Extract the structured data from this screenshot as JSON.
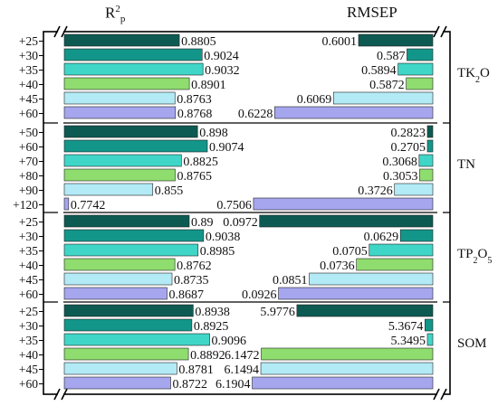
{
  "chart_data": {
    "type": "bar",
    "title": "",
    "xlabel": "",
    "ylabel": "",
    "headers": {
      "left_base": "R",
      "left_sup": "2",
      "left_sub": "p",
      "right": "RMSEP"
    },
    "colors": [
      "#0d5a52",
      "#13968a",
      "#3fd6c8",
      "#8fdc6f",
      "#b2eaf6",
      "#a6a6ef"
    ],
    "left_scale": {
      "min": 0.77,
      "max": 0.91
    },
    "right_scales": [
      {
        "min": 0.58,
        "max": 0.63
      },
      {
        "min": 0.27,
        "max": 0.765
      },
      {
        "min": 0.055,
        "max": 0.1
      },
      {
        "min": 5.33,
        "max": 6.21
      }
    ],
    "groups": [
      {
        "name_base": "TK",
        "name_sub": "2",
        "name_rest": "O",
        "name_sub2": "",
        "name_rest2": "",
        "categories": [
          "+25",
          "+30",
          "+35",
          "+40",
          "+45",
          "+60"
        ],
        "r2": [
          "0.8805",
          "0.9024",
          "0.9032",
          "0.8901",
          "0.8763",
          "0.8768"
        ],
        "rmsep": [
          "0.6001",
          "0.587",
          "0.5894",
          "0.5872",
          "0.6069",
          "0.6228"
        ]
      },
      {
        "name_base": "TN",
        "name_sub": "",
        "name_rest": "",
        "name_sub2": "",
        "name_rest2": "",
        "categories": [
          "+50",
          "+60",
          "+70",
          "+80",
          "+90",
          "+120"
        ],
        "r2": [
          "0.898",
          "0.9074",
          "0.8825",
          "0.8765",
          "0.855",
          "0.7742"
        ],
        "rmsep": [
          "0.2823",
          "0.2705",
          "0.3068",
          "0.3053",
          "0.3726",
          "0.7506"
        ]
      },
      {
        "name_base": "TP",
        "name_sub": "2",
        "name_rest": "O",
        "name_sub2": "5",
        "name_rest2": "",
        "categories": [
          "+25",
          "+30",
          "+35",
          "+40",
          "+45",
          "+60"
        ],
        "r2": [
          "0.89",
          "0.9038",
          "0.8985",
          "0.8762",
          "0.8735",
          "0.8687"
        ],
        "rmsep": [
          "0.0972",
          "0.0629",
          "0.0705",
          "0.0736",
          "0.0851",
          "0.0926"
        ]
      },
      {
        "name_base": "SOM",
        "name_sub": "",
        "name_rest": "",
        "name_sub2": "",
        "name_rest2": "",
        "categories": [
          "+25",
          "+30",
          "+35",
          "+40",
          "+45",
          "+60"
        ],
        "r2": [
          "0.8938",
          "0.8925",
          "0.9096",
          "0.8892",
          "0.8781",
          "0.8722"
        ],
        "rmsep": [
          "5.9776",
          "5.3674",
          "5.3495",
          "6.1472",
          "6.1494",
          "6.1904"
        ]
      }
    ]
  }
}
